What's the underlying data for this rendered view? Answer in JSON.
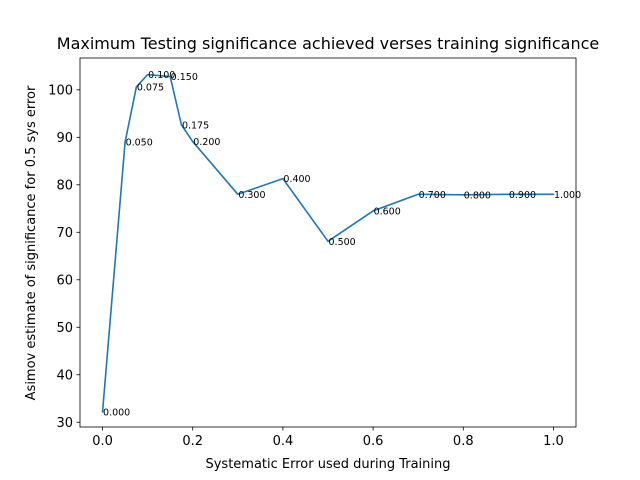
{
  "chart_data": {
    "type": "line",
    "title": "Maximum Testing significance achieved verses training significance",
    "xlabel": "Systematic Error used during Training",
    "ylabel": "Asimov estimate of significance for 0.5 sys error",
    "xlim": [
      -0.05,
      1.05
    ],
    "ylim": [
      29,
      106.7
    ],
    "x_ticks": [
      0.0,
      0.2,
      0.4,
      0.6,
      0.8,
      1.0
    ],
    "x_tick_labels": [
      "0.0",
      "0.2",
      "0.4",
      "0.6",
      "0.8",
      "1.0"
    ],
    "y_ticks": [
      30,
      40,
      50,
      60,
      70,
      80,
      90,
      100
    ],
    "y_tick_labels": [
      "30",
      "40",
      "50",
      "60",
      "70",
      "80",
      "90",
      "100"
    ],
    "grid": false,
    "series_color": "#1f77b4",
    "series": [
      {
        "x": [
          0.0,
          0.05,
          0.075,
          0.1,
          0.15,
          0.175,
          0.2,
          0.3,
          0.4,
          0.5,
          0.6,
          0.7,
          0.8,
          0.9,
          1.0
        ],
        "y": [
          32.2,
          89.0,
          100.6,
          103.2,
          102.8,
          92.6,
          89.1,
          78.0,
          81.3,
          68.1,
          74.5,
          78.0,
          77.9,
          78.0,
          78.0
        ],
        "point_labels": [
          "0.000",
          "0.050",
          "0.075",
          "0.100",
          "0.150",
          "0.175",
          "0.200",
          "0.300",
          "0.400",
          "0.500",
          "0.600",
          "0.700",
          "0.800",
          "0.900",
          "1.000"
        ]
      }
    ]
  }
}
